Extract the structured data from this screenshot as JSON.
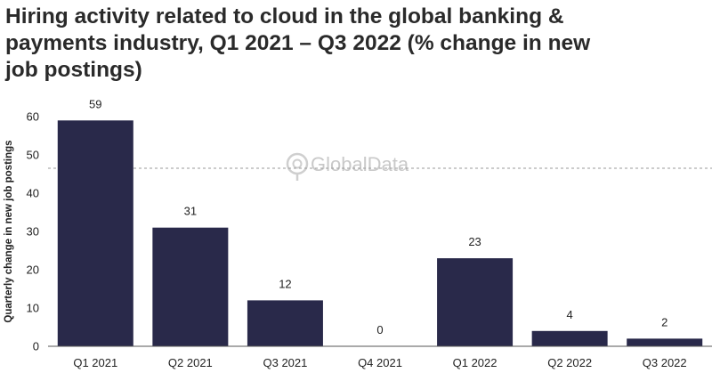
{
  "title": "Hiring activity related to cloud in the global banking & payments industry, Q1 2021 – Q3 2022 (% change in new job postings)",
  "watermark": "GlobalData",
  "colors": {
    "bar": "#29294a",
    "axis": "#555555",
    "ref_line": "#9a9a9a",
    "watermark": "#c9c9c9"
  },
  "chart_data": {
    "type": "bar",
    "title": "Hiring activity related to cloud in the global banking & payments industry, Q1 2021 – Q3 2022 (% change in new job postings)",
    "xlabel": "",
    "ylabel": "Quarterly change in new job postings",
    "categories": [
      "Q1 2021",
      "Q2 2021",
      "Q3 2021",
      "Q4 2021",
      "Q1 2022",
      "Q2 2022",
      "Q3 2022"
    ],
    "values": [
      59,
      31,
      12,
      0,
      23,
      4,
      2
    ],
    "ylim": [
      0,
      60
    ],
    "yticks": [
      0,
      10,
      20,
      30,
      40,
      50,
      60
    ],
    "reference_line": 46.5,
    "grid": false,
    "legend": "none"
  }
}
